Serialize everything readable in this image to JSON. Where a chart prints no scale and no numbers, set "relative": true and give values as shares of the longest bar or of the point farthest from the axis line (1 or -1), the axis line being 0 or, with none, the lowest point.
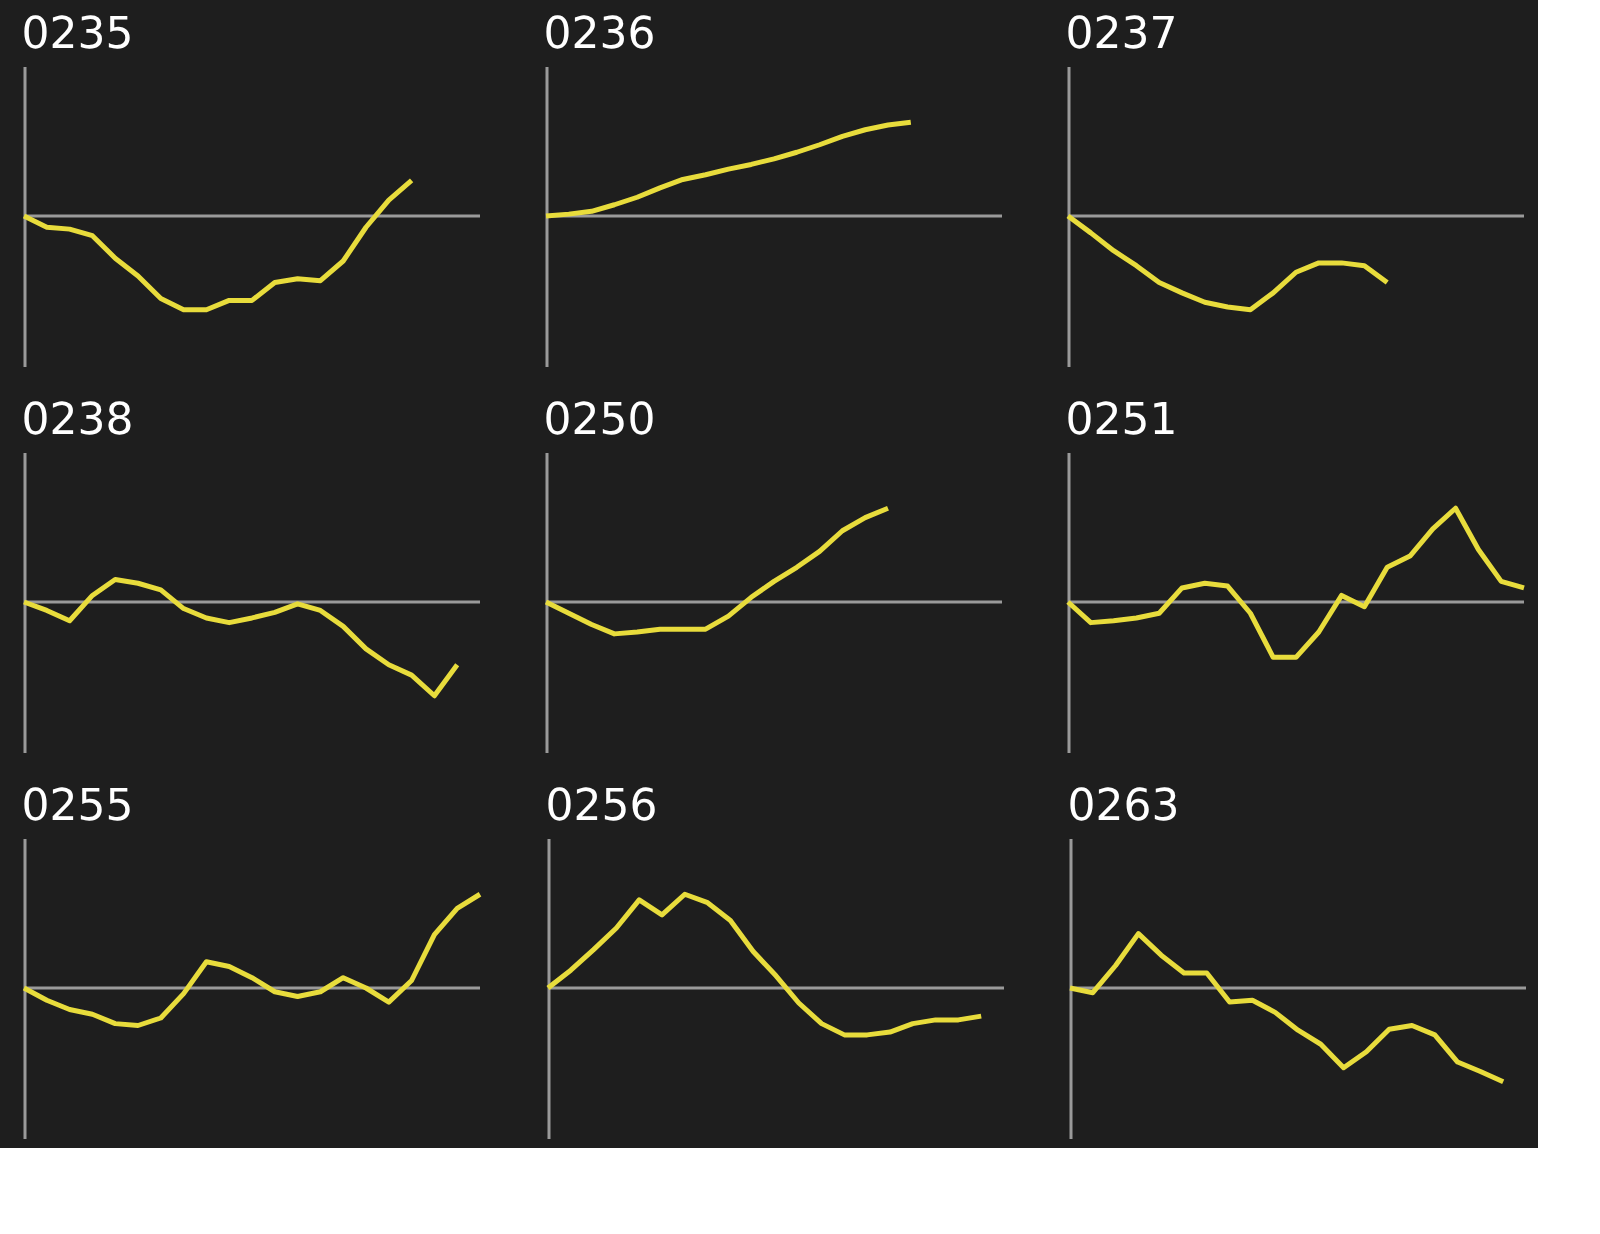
{
  "chart_data": [
    {
      "type": "line",
      "title": "0235",
      "relative": true,
      "categories": [
        null,
        null,
        null,
        null,
        null,
        null,
        null,
        null,
        null,
        null,
        null,
        null,
        null,
        null,
        null,
        null,
        null,
        null,
        null,
        null,
        null
      ],
      "series": [
        {
          "color": "#e8dc3c",
          "values": [
            0,
            -0.12,
            -0.14,
            -0.21,
            -0.45,
            -0.64,
            -0.88,
            -1,
            -1,
            -0.9,
            -0.9,
            -0.71,
            -0.67,
            -0.69,
            -0.48,
            -0.12,
            0.17,
            0.38,
            null,
            null,
            null
          ]
        }
      ]
    },
    {
      "type": "line",
      "title": "0236",
      "relative": true,
      "categories": [
        null,
        null,
        null,
        null,
        null,
        null,
        null,
        null,
        null,
        null,
        null,
        null,
        null,
        null,
        null,
        null,
        null,
        null,
        null,
        null,
        null
      ],
      "series": [
        {
          "color": "#e8dc3c",
          "values": [
            0,
            0.02,
            0.05,
            0.12,
            0.2,
            0.3,
            0.39,
            0.44,
            0.5,
            0.55,
            0.61,
            0.68,
            0.76,
            0.85,
            0.92,
            0.97,
            1,
            null,
            null,
            null,
            null
          ]
        }
      ]
    },
    {
      "type": "line",
      "title": "0237",
      "relative": true,
      "categories": [
        null,
        null,
        null,
        null,
        null,
        null,
        null,
        null,
        null,
        null,
        null,
        null,
        null,
        null,
        null,
        null,
        null,
        null,
        null,
        null,
        null
      ],
      "series": [
        {
          "color": "#e8dc3c",
          "values": [
            0,
            -0.18,
            -0.37,
            -0.53,
            -0.71,
            -0.82,
            -0.92,
            -0.97,
            -1,
            -0.82,
            -0.6,
            -0.5,
            -0.5,
            -0.53,
            -0.71,
            null,
            null,
            null,
            null,
            null,
            null
          ]
        }
      ]
    },
    {
      "type": "line",
      "title": "0238",
      "relative": true,
      "categories": [
        null,
        null,
        null,
        null,
        null,
        null,
        null,
        null,
        null,
        null,
        null,
        null,
        null,
        null,
        null,
        null,
        null,
        null,
        null,
        null,
        null
      ],
      "series": [
        {
          "color": "#e8dc3c",
          "values": [
            0,
            -0.09,
            -0.2,
            0.07,
            0.24,
            0.2,
            0.13,
            -0.07,
            -0.17,
            -0.22,
            -0.17,
            -0.11,
            -0.02,
            -0.09,
            -0.26,
            -0.5,
            -0.67,
            -0.78,
            -1,
            -0.67,
            null
          ]
        }
      ]
    },
    {
      "type": "line",
      "title": "0250",
      "relative": true,
      "categories": [
        null,
        null,
        null,
        null,
        null,
        null,
        null,
        null,
        null,
        null,
        null,
        null,
        null,
        null,
        null,
        null,
        null,
        null,
        null,
        null,
        null
      ],
      "series": [
        {
          "color": "#e8dc3c",
          "values": [
            0,
            -0.12,
            -0.24,
            -0.34,
            -0.32,
            -0.29,
            -0.29,
            -0.29,
            -0.15,
            0.05,
            0.22,
            0.37,
            0.54,
            0.76,
            0.9,
            1,
            null,
            null,
            null,
            null,
            null
          ]
        }
      ]
    },
    {
      "type": "line",
      "title": "0251",
      "relative": true,
      "categories": [
        null,
        null,
        null,
        null,
        null,
        null,
        null,
        null,
        null,
        null,
        null,
        null,
        null,
        null,
        null,
        null,
        null,
        null,
        null,
        null,
        null
      ],
      "series": [
        {
          "color": "#e8dc3c",
          "values": [
            0,
            -0.22,
            -0.2,
            -0.17,
            -0.12,
            0.15,
            0.2,
            0.17,
            -0.12,
            -0.59,
            -0.59,
            -0.32,
            0.07,
            -0.05,
            0.37,
            0.49,
            0.78,
            1,
            0.56,
            0.22,
            0.15
          ]
        }
      ]
    },
    {
      "type": "line",
      "title": "0255",
      "relative": true,
      "categories": [
        null,
        null,
        null,
        null,
        null,
        null,
        null,
        null,
        null,
        null,
        null,
        null,
        null,
        null,
        null,
        null,
        null,
        null,
        null,
        null,
        null
      ],
      "series": [
        {
          "color": "#e8dc3c",
          "values": [
            0,
            -0.13,
            -0.23,
            -0.28,
            -0.38,
            -0.4,
            -0.32,
            -0.06,
            0.28,
            0.23,
            0.11,
            -0.04,
            -0.09,
            -0.04,
            0.11,
            0,
            -0.15,
            0.08,
            0.57,
            0.85,
            1
          ]
        }
      ]
    },
    {
      "type": "line",
      "title": "0256",
      "relative": true,
      "categories": [
        null,
        null,
        null,
        null,
        null,
        null,
        null,
        null,
        null,
        null,
        null,
        null,
        null,
        null,
        null,
        null,
        null,
        null,
        null,
        null,
        null
      ],
      "series": [
        {
          "color": "#e8dc3c",
          "values": [
            0,
            0.19,
            0.41,
            0.64,
            0.94,
            0.78,
            1,
            0.91,
            0.72,
            0.39,
            0.13,
            -0.16,
            -0.38,
            -0.5,
            -0.5,
            -0.47,
            -0.38,
            -0.34,
            -0.34,
            -0.3,
            null
          ]
        }
      ]
    },
    {
      "type": "line",
      "title": "0263",
      "relative": true,
      "categories": [
        null,
        null,
        null,
        null,
        null,
        null,
        null,
        null,
        null,
        null,
        null,
        null,
        null,
        null,
        null,
        null,
        null,
        null,
        null,
        null,
        null
      ],
      "series": [
        {
          "color": "#e8dc3c",
          "values": [
            0,
            -0.05,
            0.24,
            0.58,
            0.35,
            0.16,
            0.16,
            -0.15,
            -0.13,
            -0.26,
            -0.45,
            -0.6,
            -0.85,
            -0.68,
            -0.44,
            -0.4,
            -0.5,
            -0.79,
            -0.89,
            -1,
            null
          ]
        }
      ]
    }
  ]
}
